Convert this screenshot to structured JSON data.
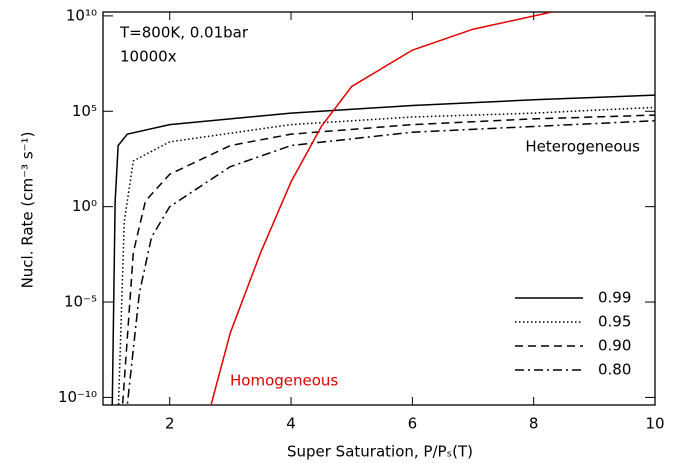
{
  "chart_data": {
    "type": "line",
    "xlabel": "Super Saturation, P/Pₛ(T)",
    "ylabel": "Nucl. Rate (cm⁻³ s⁻¹)",
    "annotations": [
      "T=800K, 0.01bar",
      "10000x",
      "Heterogeneous",
      "Homogeneous"
    ],
    "xlim": [
      0.9,
      10
    ],
    "xticks": [
      2,
      4,
      6,
      8,
      10
    ],
    "ylim": [
      4e-11,
      16000000000.0
    ],
    "ylog": true,
    "yticks": [
      {
        "value": 1e-10,
        "label": "10⁻¹⁰"
      },
      {
        "value": 1e-05,
        "label": "10⁻⁵"
      },
      {
        "value": 1,
        "label": "10⁰"
      },
      {
        "value": 100000.0,
        "label": "10⁵"
      },
      {
        "value": 10000000000.0,
        "label": "10¹⁰"
      }
    ],
    "legend": "lower right",
    "series": [
      {
        "name": "0.99",
        "color": "#000000",
        "dash": "solid",
        "x": [
          1.05,
          1.1,
          1.15,
          1.3,
          2,
          4,
          6,
          8,
          10
        ],
        "values": [
          1e-11,
          1.8,
          1600,
          6300,
          20000,
          80000,
          200000,
          400000,
          700000
        ]
      },
      {
        "name": "0.95",
        "color": "#000000",
        "dash": "dotted",
        "x": [
          1.15,
          1.25,
          1.4,
          2,
          4,
          6,
          8,
          10
        ],
        "values": [
          1e-11,
          0.16,
          250,
          2500,
          20000,
          50000,
          80000,
          160000
        ]
      },
      {
        "name": "0.90",
        "color": "#000000",
        "dash": "dashed",
        "x": [
          1.21,
          1.4,
          1.6,
          2,
          3,
          4,
          6,
          8,
          10
        ],
        "values": [
          1e-11,
          0.004,
          2,
          50,
          1600,
          6300,
          20000,
          40000,
          63000
        ]
      },
      {
        "name": "0.80",
        "color": "#000000",
        "dash": "dashdot",
        "x": [
          1.28,
          1.5,
          1.7,
          2,
          3,
          4,
          6,
          8,
          10
        ],
        "values": [
          1e-11,
          3e-05,
          0.025,
          1,
          125,
          1600,
          8000,
          16000,
          32000
        ]
      },
      {
        "name": null,
        "color": "#e00000",
        "dash": "solid",
        "x": [
          2.63,
          3,
          3.5,
          4,
          4.5,
          5,
          6,
          7,
          8.3
        ],
        "values": [
          1e-11,
          2.5e-07,
          0.004,
          20,
          16000,
          2000000,
          160000000,
          2000000000,
          16000000000
        ]
      }
    ]
  }
}
